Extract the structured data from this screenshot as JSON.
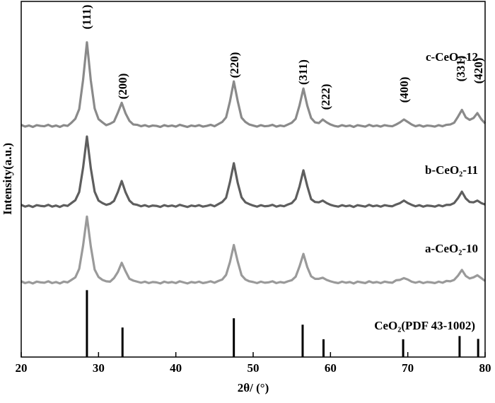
{
  "chart_data": {
    "type": "line",
    "x_label": "2θ/ (°)",
    "y_label": "Intensity(a.u.)",
    "xlim": [
      20,
      80
    ],
    "xticks": [
      20,
      30,
      40,
      50,
      60,
      70,
      80
    ],
    "ylim": [
      0,
      100
    ],
    "x": [
      20.0,
      20.5,
      21.0,
      21.5,
      22.0,
      22.5,
      23.0,
      23.5,
      24.0,
      24.5,
      25.0,
      25.5,
      26.0,
      26.5,
      27.0,
      27.5,
      28.0,
      28.5,
      29.0,
      29.5,
      30.0,
      30.5,
      31.0,
      31.5,
      32.0,
      32.5,
      33.0,
      33.5,
      34.0,
      34.5,
      35.0,
      35.5,
      36.0,
      36.5,
      37.0,
      37.5,
      38.0,
      38.5,
      39.0,
      39.5,
      40.0,
      40.5,
      41.0,
      41.5,
      42.0,
      42.5,
      43.0,
      43.5,
      44.0,
      44.5,
      45.0,
      45.5,
      46.0,
      46.5,
      47.0,
      47.5,
      48.0,
      48.5,
      49.0,
      49.5,
      50.0,
      50.5,
      51.0,
      51.5,
      52.0,
      52.5,
      53.0,
      53.5,
      54.0,
      54.5,
      55.0,
      55.5,
      56.0,
      56.5,
      57.0,
      57.5,
      58.0,
      58.5,
      59.0,
      59.5,
      60.0,
      60.5,
      61.0,
      61.5,
      62.0,
      62.5,
      63.0,
      63.5,
      64.0,
      64.5,
      65.0,
      65.5,
      66.0,
      66.5,
      67.0,
      67.5,
      68.0,
      68.5,
      69.0,
      69.5,
      70.0,
      70.5,
      71.0,
      71.5,
      72.0,
      72.5,
      73.0,
      73.5,
      74.0,
      74.5,
      75.0,
      75.5,
      76.0,
      76.5,
      77.0,
      77.5,
      78.0,
      78.5,
      79.0,
      79.5,
      80.0
    ],
    "series": [
      {
        "name": "c-CeO₂-12",
        "color": "#8a8a8a",
        "values": [
          65.3,
          64.8,
          65.1,
          64.7,
          65.2,
          65.0,
          64.9,
          65.3,
          64.8,
          65.1,
          64.7,
          65.2,
          65.0,
          65.9,
          67.0,
          69.7,
          77.9,
          88.5,
          77.8,
          69.9,
          66.9,
          66.0,
          65.2,
          65.6,
          66.2,
          68.7,
          71.5,
          68.5,
          66.4,
          65.4,
          65.3,
          64.9,
          65.2,
          64.8,
          65.1,
          65.0,
          64.7,
          65.2,
          64.9,
          65.1,
          64.8,
          65.3,
          65.0,
          64.7,
          65.1,
          64.9,
          65.2,
          64.8,
          65.0,
          65.3,
          64.9,
          65.5,
          66.1,
          67.4,
          71.9,
          77.5,
          72.0,
          67.3,
          66.1,
          65.4,
          65.1,
          64.8,
          65.2,
          64.9,
          65.0,
          65.3,
          64.8,
          65.1,
          64.9,
          65.4,
          65.9,
          67.0,
          70.8,
          75.5,
          70.7,
          67.2,
          66.0,
          65.8,
          66.8,
          66.0,
          65.4,
          65.0,
          64.8,
          65.2,
          64.9,
          65.1,
          64.7,
          65.2,
          65.0,
          64.8,
          65.3,
          64.9,
          65.1,
          64.8,
          65.2,
          65.0,
          64.9,
          65.4,
          66.0,
          66.8,
          66.1,
          65.4,
          64.9,
          65.2,
          64.8,
          65.1,
          65.0,
          64.8,
          65.2,
          64.9,
          65.3,
          65.4,
          65.9,
          67.6,
          69.5,
          67.4,
          66.7,
          67.2,
          68.6,
          66.9,
          65.7
        ]
      },
      {
        "name": "b-CeO₂-11",
        "color": "#5e5e5e",
        "values": [
          42.8,
          42.3,
          42.6,
          42.2,
          42.7,
          42.5,
          42.4,
          42.8,
          42.3,
          42.6,
          42.2,
          42.7,
          42.5,
          43.3,
          44.1,
          46.4,
          53.2,
          62.0,
          53.1,
          46.5,
          44.0,
          43.3,
          42.8,
          43.1,
          43.9,
          46.4,
          49.5,
          46.3,
          44.0,
          43.0,
          42.8,
          42.4,
          42.7,
          42.3,
          42.6,
          42.5,
          42.2,
          42.7,
          42.4,
          42.6,
          42.3,
          42.8,
          42.5,
          42.2,
          42.6,
          42.4,
          42.7,
          42.3,
          42.5,
          42.8,
          42.4,
          43.0,
          43.6,
          44.8,
          49.2,
          54.5,
          49.0,
          44.9,
          43.5,
          43.0,
          42.6,
          42.3,
          42.7,
          42.4,
          42.5,
          42.8,
          42.3,
          42.6,
          42.4,
          42.9,
          43.3,
          44.5,
          48.0,
          52.5,
          48.1,
          44.4,
          43.6,
          43.5,
          44.0,
          43.3,
          42.8,
          42.5,
          42.3,
          42.7,
          42.4,
          42.6,
          42.2,
          42.7,
          42.5,
          42.3,
          42.8,
          42.4,
          42.6,
          42.3,
          42.7,
          42.5,
          42.4,
          42.9,
          43.3,
          44.0,
          43.3,
          42.8,
          42.4,
          42.7,
          42.3,
          42.6,
          42.5,
          42.3,
          42.7,
          42.4,
          42.8,
          42.8,
          43.3,
          44.7,
          46.5,
          44.6,
          43.6,
          43.5,
          44.0,
          43.3,
          42.9
        ]
      },
      {
        "name": "a-CeO₂-10",
        "color": "#9a9a9a",
        "values": [
          21.3,
          20.8,
          21.1,
          20.7,
          21.2,
          21.0,
          20.9,
          21.3,
          20.8,
          21.1,
          20.7,
          21.2,
          21.0,
          21.7,
          22.4,
          24.8,
          31.3,
          39.5,
          31.1,
          24.6,
          22.5,
          21.7,
          21.3,
          21.2,
          22.2,
          23.9,
          26.5,
          24.1,
          22.0,
          21.5,
          21.2,
          20.9,
          21.2,
          20.8,
          21.1,
          21.0,
          20.7,
          21.2,
          20.9,
          21.1,
          20.8,
          21.3,
          21.0,
          20.7,
          21.1,
          20.9,
          21.2,
          20.8,
          21.0,
          21.3,
          20.9,
          21.4,
          21.8,
          23.1,
          26.7,
          31.5,
          26.9,
          23.0,
          21.8,
          21.3,
          21.1,
          20.8,
          21.2,
          20.9,
          21.0,
          21.3,
          20.8,
          21.1,
          20.9,
          21.3,
          21.6,
          22.6,
          25.5,
          29.0,
          25.3,
          22.7,
          22.0,
          22.0,
          22.3,
          21.7,
          21.3,
          21.0,
          20.8,
          21.2,
          20.9,
          21.1,
          20.7,
          21.2,
          21.0,
          20.8,
          21.3,
          20.9,
          21.1,
          20.8,
          21.2,
          21.0,
          20.9,
          21.6,
          21.7,
          22.2,
          21.8,
          21.2,
          20.9,
          21.2,
          20.8,
          21.1,
          21.0,
          20.8,
          21.2,
          20.9,
          21.4,
          21.3,
          21.7,
          22.9,
          24.5,
          22.8,
          22.1,
          22.4,
          23.0,
          22.2,
          21.4
        ]
      }
    ],
    "reference": {
      "name": "CeO₂(PDF 43-1002)",
      "color": "#000000",
      "x": [
        28.5,
        33.1,
        47.5,
        56.4,
        59.1,
        69.4,
        76.7,
        79.1
      ],
      "values": [
        18.8,
        8.3,
        10.9,
        9.1,
        5.0,
        5.0,
        5.9,
        5.1
      ]
    },
    "annotations": [
      "(111)",
      "(200)",
      "(220)",
      "(311)",
      "(222)",
      "(400)",
      "(331)",
      "(420)"
    ]
  }
}
